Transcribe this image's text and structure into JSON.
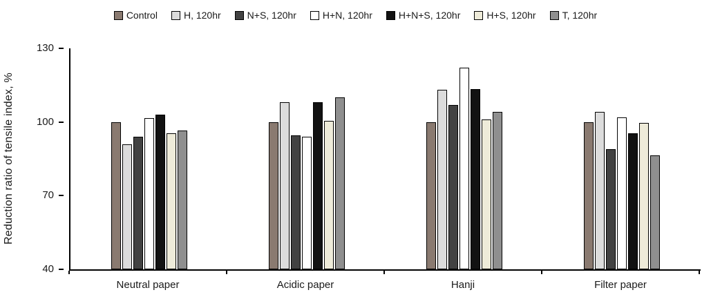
{
  "chart_data": {
    "type": "bar",
    "title": "",
    "xlabel": "",
    "ylabel": "Reduction ratio of tensile index, %",
    "ylim": [
      40,
      130
    ],
    "yticks": [
      40,
      70,
      100,
      130
    ],
    "grid": false,
    "legend_position": "top",
    "categories": [
      "Neutral paper",
      "Acidic paper",
      "Hanji",
      "Filter paper"
    ],
    "series": [
      {
        "name": "Control",
        "color": "#8a7a70",
        "values": [
          100,
          100,
          100,
          100
        ]
      },
      {
        "name": "H, 120hr",
        "color": "#dcdcdc",
        "values": [
          91,
          108,
          113,
          104
        ]
      },
      {
        "name": "N+S, 120hr",
        "color": "#424242",
        "values": [
          94,
          94.5,
          107,
          89
        ]
      },
      {
        "name": "H+N, 120hr",
        "color": "#ffffff",
        "values": [
          101.5,
          94,
          122,
          102
        ]
      },
      {
        "name": "H+N+S, 120hr",
        "color": "#121212",
        "values": [
          103,
          108,
          113.5,
          95.5
        ]
      },
      {
        "name": "H+S, 120hr",
        "color": "#eeebd9",
        "values": [
          95.5,
          100.5,
          101,
          99.5
        ]
      },
      {
        "name": "T, 120hr",
        "color": "#8f8f8f",
        "values": [
          96.5,
          110,
          104,
          86.5
        ]
      }
    ]
  }
}
